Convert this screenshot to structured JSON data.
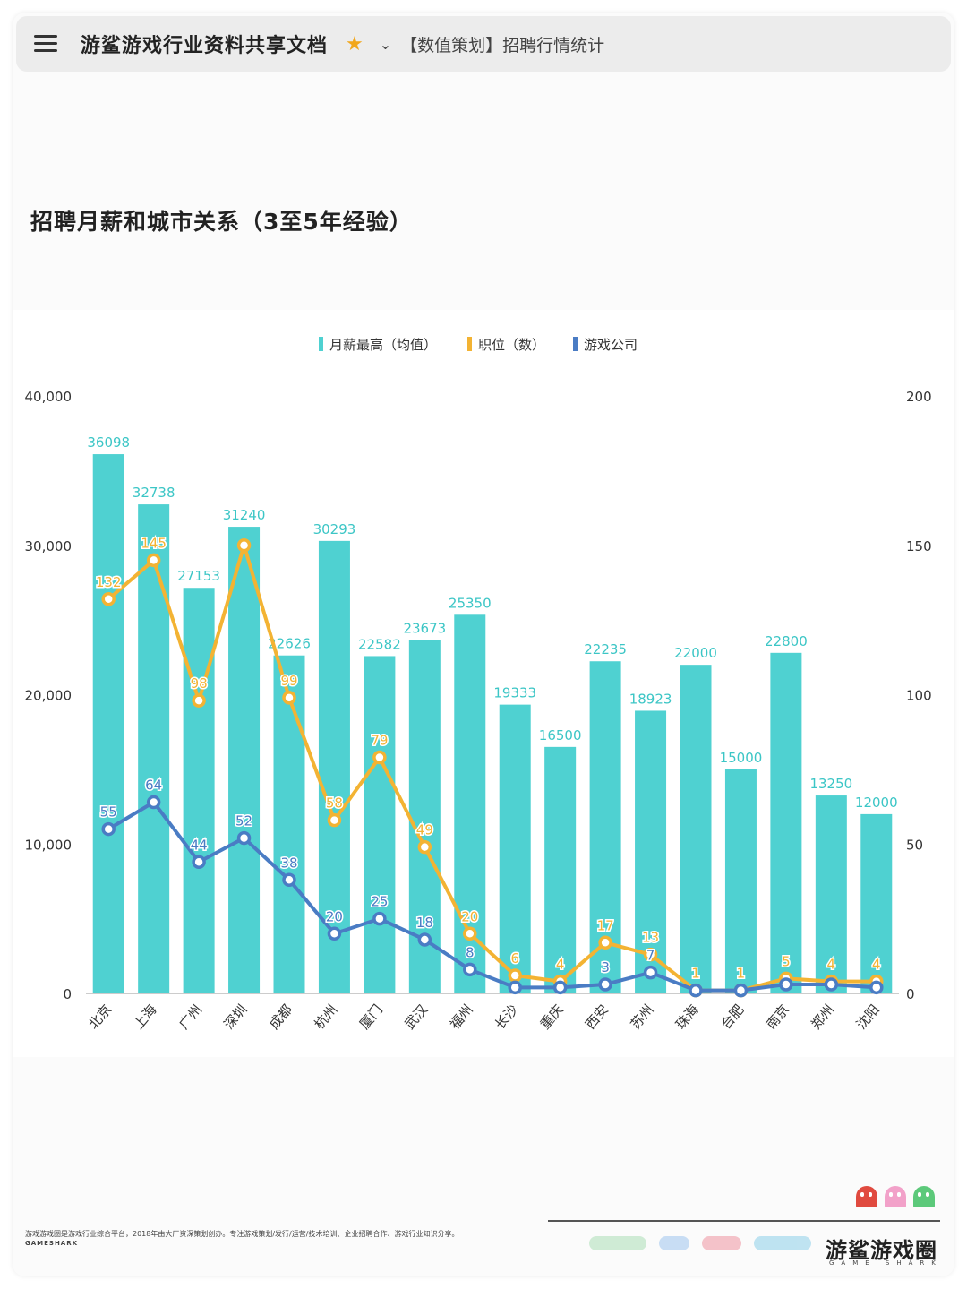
{
  "topbar": {
    "doc_title": "游鲨游戏行业资料共享文档",
    "breadcrumb": "【数值策划】招聘行情统计"
  },
  "chart_title": "招聘月薪和城市关系（3至5年经验）",
  "chart_data": {
    "type": "bar",
    "title": "招聘月薪和城市关系（3至5年经验）",
    "categories": [
      "北京",
      "上海",
      "广州",
      "深圳",
      "成都",
      "杭州",
      "厦门",
      "武汉",
      "福州",
      "长沙",
      "重庆",
      "西安",
      "苏州",
      "珠海",
      "合肥",
      "南京",
      "郑州",
      "沈阳"
    ],
    "legend_position": "top",
    "y_left_ticks": [
      "0",
      "10,000",
      "20,000",
      "30,000",
      "40,000"
    ],
    "y_left_range": [
      0,
      40000
    ],
    "y_right_ticks": [
      "0",
      "50",
      "100",
      "150",
      "200"
    ],
    "y_right_range": [
      0,
      200
    ],
    "series": [
      {
        "name": "月薪最高（均值）",
        "type": "bar",
        "axis": "left",
        "color": "#4fd1d1",
        "values": [
          36098,
          32738,
          27153,
          31240,
          22626,
          30293,
          22582,
          23673,
          25350,
          19333,
          16500,
          22235,
          18923,
          22000,
          15000,
          22800,
          13250,
          12000
        ]
      },
      {
        "name": "职位（数）",
        "type": "line",
        "axis": "right",
        "color": "#f3b333",
        "values": [
          132,
          145,
          98,
          150,
          99,
          58,
          79,
          49,
          20,
          6,
          4,
          17,
          13,
          1,
          1,
          5,
          4,
          4
        ],
        "labels": [
          "132",
          "145",
          "98",
          "",
          "99",
          "58",
          "79",
          "49",
          "20",
          "6",
          "4",
          "17",
          "13",
          "1",
          "1",
          "5",
          "4",
          "4"
        ]
      },
      {
        "name": "游戏公司",
        "type": "line",
        "axis": "right",
        "color": "#4a7cc4",
        "values": [
          55,
          64,
          44,
          52,
          38,
          20,
          25,
          18,
          8,
          2,
          2,
          3,
          7,
          1,
          1,
          3,
          3,
          2
        ],
        "labels": [
          "55",
          "64",
          "44",
          "52",
          "38",
          "20",
          "25",
          "18",
          "8",
          "",
          "",
          "3",
          "7",
          "",
          "",
          "",
          "",
          ""
        ]
      }
    ],
    "grid": false
  },
  "footer": {
    "description": "游戏游戏圈是游戏行业综合平台，2018年由大厂资深策划创办。专注游戏策划/发行/运营/技术培训、企业招聘合作、游戏行业知识分享。",
    "brand_small": "GAMESHARK",
    "logo": "游鲨游戏圈",
    "logo_sub": "GAME SHARK"
  },
  "colors": {
    "bar": "#4fd1d1",
    "positions_line": "#f3b333",
    "companies_line": "#4a7cc4",
    "star": "#f2a71b"
  }
}
